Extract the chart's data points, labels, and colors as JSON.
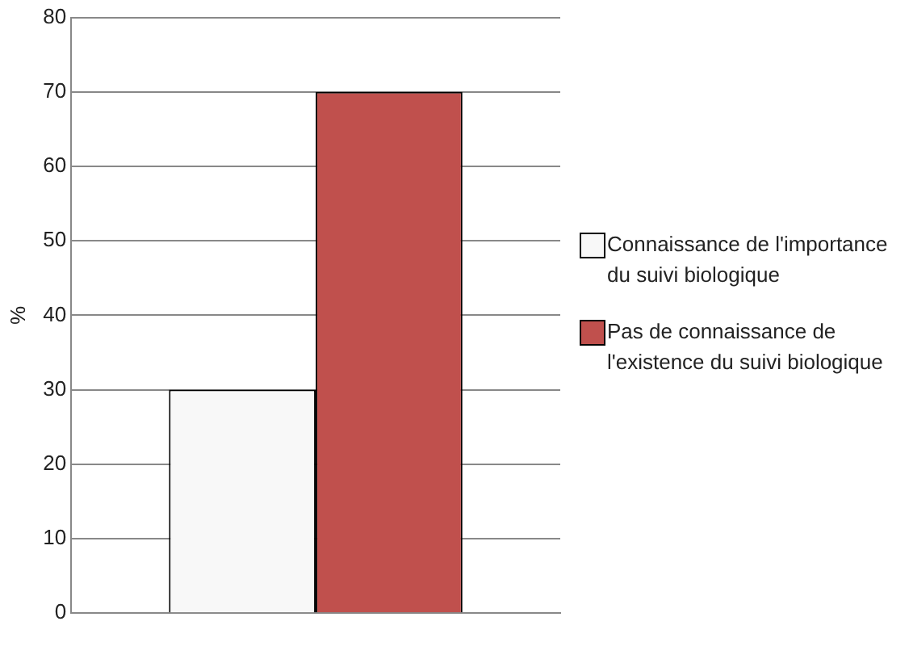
{
  "chart_data": {
    "type": "bar",
    "ylabel": "%",
    "categories": [
      null
    ],
    "series": [
      {
        "name": "Connaissance de l'importance du suivi biologique",
        "color": "#f8f8f8",
        "values": [
          30
        ]
      },
      {
        "name": "Pas de connaissance de l'existence du suivi biologique",
        "color": "#c0504d",
        "values": [
          70
        ]
      }
    ],
    "ylim": [
      0,
      80
    ],
    "yticks": [
      0,
      10,
      20,
      30,
      40,
      50,
      60,
      70,
      80
    ],
    "grid": "y",
    "legend": "right"
  }
}
